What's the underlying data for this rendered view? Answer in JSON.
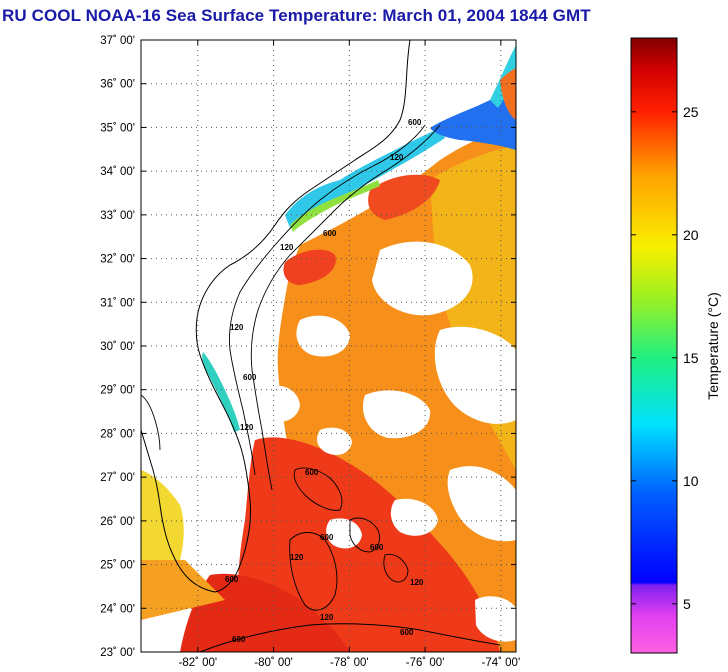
{
  "title": "RU COOL  NOAA-16  Sea Surface Temperature:  March 01, 2004 1844 GMT",
  "map": {
    "lat_range": [
      23,
      37
    ],
    "lon_range": [
      -83.5,
      -73.6
    ],
    "lat_ticks": [
      {
        "value": 37,
        "label": "37˚ 00'"
      },
      {
        "value": 36,
        "label": "36˚ 00'"
      },
      {
        "value": 35,
        "label": "35˚ 00'"
      },
      {
        "value": 34,
        "label": "34˚ 00'"
      },
      {
        "value": 33,
        "label": "33˚ 00'"
      },
      {
        "value": 32,
        "label": "32˚ 00'"
      },
      {
        "value": 31,
        "label": "31˚ 00'"
      },
      {
        "value": 30,
        "label": "30˚ 00'"
      },
      {
        "value": 29,
        "label": "29˚ 00'"
      },
      {
        "value": 28,
        "label": "28˚ 00'"
      },
      {
        "value": 27,
        "label": "27˚ 00'"
      },
      {
        "value": 26,
        "label": "26˚ 00'"
      },
      {
        "value": 25,
        "label": "25˚ 00'"
      },
      {
        "value": 24,
        "label": "24˚ 00'"
      },
      {
        "value": 23,
        "label": "23˚ 00'"
      }
    ],
    "lon_ticks": [
      {
        "value": -82,
        "label": "-82˚ 00'"
      },
      {
        "value": -80,
        "label": "-80˚ 00'"
      },
      {
        "value": -78,
        "label": "-78˚ 00'"
      },
      {
        "value": -76,
        "label": "-76˚ 00'"
      },
      {
        "value": -74,
        "label": "-74˚ 00'"
      }
    ],
    "grid": "dotted",
    "contour_labels": [
      "600",
      "120",
      "600",
      "120",
      "120",
      "600",
      "120",
      "600",
      "600",
      "600",
      "120",
      "600",
      "120",
      "600",
      "600",
      "120"
    ]
  },
  "colorbar": {
    "title": "Temperature (°C)",
    "range": [
      3,
      28
    ],
    "ticks": [
      {
        "value": 5,
        "label": "5"
      },
      {
        "value": 10,
        "label": "10"
      },
      {
        "value": 15,
        "label": "15"
      },
      {
        "value": 20,
        "label": "20"
      },
      {
        "value": 25,
        "label": "25"
      }
    ]
  },
  "colors": {
    "title": "#1a1aa8",
    "land": "#ffffff",
    "warm_water": "#f03018",
    "orange_water": "#f88a10",
    "cool_water": "#20d8e8",
    "yellow_water": "#f0e030"
  }
}
